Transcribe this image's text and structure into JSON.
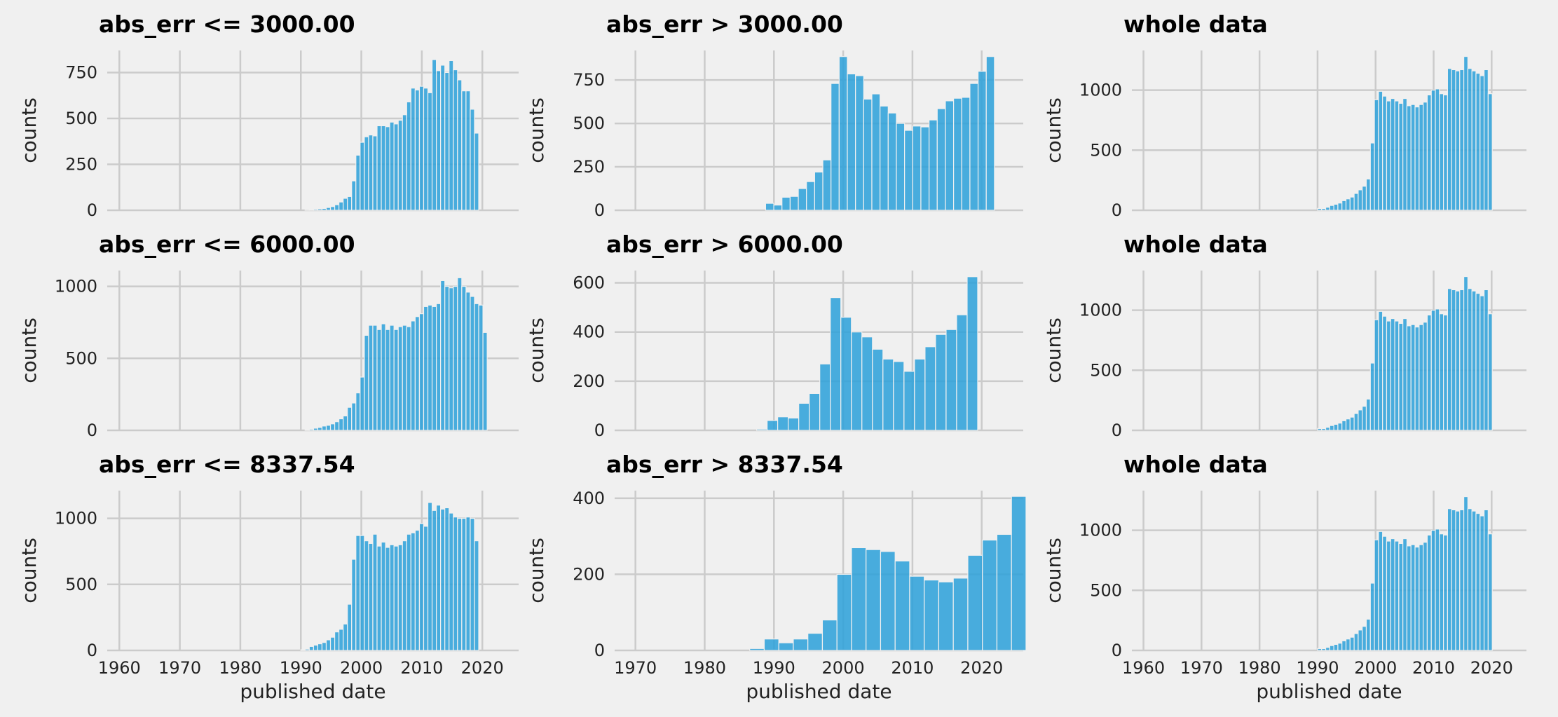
{
  "colors": {
    "background": "#f0f0f0",
    "bar": "#30a2da",
    "grid": "#cbcbcb"
  },
  "chart_data": [
    {
      "type": "bar",
      "title": "abs_err <= 3000.00",
      "xlabel": "",
      "ylabel": "counts",
      "bin_start": 1990,
      "bin_width": 0.7,
      "xlim": [
        1958,
        2026
      ],
      "ylim": [
        0,
        870
      ],
      "xticks": [],
      "yticks": [
        0,
        250,
        500,
        750
      ],
      "values": [
        0,
        2,
        4,
        6,
        8,
        10,
        15,
        20,
        30,
        45,
        65,
        75,
        160,
        300,
        370,
        400,
        410,
        405,
        460,
        460,
        455,
        480,
        470,
        490,
        520,
        590,
        665,
        655,
        675,
        665,
        640,
        820,
        760,
        790,
        750,
        815,
        765,
        710,
        650,
        650,
        550,
        420,
        0
      ]
    },
    {
      "type": "bar",
      "title": "abs_err > 3000.00",
      "xlabel": "",
      "ylabel": "counts",
      "bin_start": 1988.8,
      "bin_width": 1.18,
      "xlim": [
        1967,
        2026
      ],
      "ylim": [
        0,
        920
      ],
      "xticks": [],
      "yticks": [
        0,
        250,
        500,
        750
      ],
      "values": [
        40,
        30,
        75,
        80,
        125,
        165,
        220,
        290,
        730,
        885,
        785,
        775,
        640,
        670,
        600,
        560,
        500,
        460,
        485,
        480,
        520,
        585,
        630,
        645,
        650,
        730,
        800,
        885
      ]
    },
    {
      "type": "bar",
      "title": "whole data",
      "xlabel": "",
      "ylabel": "counts",
      "bin_start": 1990,
      "bin_width": 0.7,
      "xlim": [
        1958,
        2026
      ],
      "ylim": [
        0,
        1330
      ],
      "xticks": [],
      "yticks": [
        0,
        500,
        1000
      ],
      "values": [
        15,
        15,
        25,
        40,
        50,
        60,
        80,
        95,
        110,
        140,
        170,
        200,
        260,
        560,
        920,
        990,
        950,
        910,
        930,
        910,
        890,
        930,
        870,
        880,
        860,
        880,
        900,
        960,
        1000,
        1010,
        970,
        960,
        1180,
        1170,
        1160,
        1170,
        1280,
        1180,
        1160,
        1140,
        1120,
        1170,
        970
      ]
    },
    {
      "type": "bar",
      "title": "abs_err <= 6000.00",
      "xlabel": "",
      "ylabel": "counts",
      "bin_start": 1990,
      "bin_width": 0.7,
      "xlim": [
        1958,
        2026
      ],
      "ylim": [
        0,
        1110
      ],
      "xticks": [],
      "yticks": [
        0,
        500,
        1000
      ],
      "values": [
        0,
        5,
        8,
        15,
        20,
        30,
        35,
        45,
        60,
        80,
        100,
        160,
        190,
        260,
        370,
        660,
        730,
        730,
        700,
        740,
        700,
        730,
        700,
        720,
        730,
        720,
        760,
        790,
        810,
        860,
        870,
        860,
        880,
        1040,
        1000,
        990,
        1000,
        1060,
        1000,
        960,
        930,
        880,
        870,
        680
      ]
    },
    {
      "type": "bar",
      "title": "abs_err > 6000.00",
      "xlabel": "",
      "ylabel": "counts",
      "bin_start": 1987.5,
      "bin_width": 1.52,
      "xlim": [
        1967,
        2026
      ],
      "ylim": [
        0,
        650
      ],
      "xticks": [],
      "yticks": [
        0,
        200,
        400,
        600
      ],
      "values": [
        5,
        40,
        55,
        50,
        110,
        150,
        270,
        540,
        460,
        400,
        380,
        330,
        290,
        280,
        240,
        290,
        340,
        390,
        410,
        470,
        625
      ]
    },
    {
      "type": "bar",
      "title": "whole data",
      "xlabel": "",
      "ylabel": "counts",
      "bin_start": 1990,
      "bin_width": 0.7,
      "xlim": [
        1958,
        2026
      ],
      "ylim": [
        0,
        1330
      ],
      "xticks": [],
      "yticks": [
        0,
        500,
        1000
      ],
      "values": [
        15,
        15,
        25,
        40,
        50,
        60,
        80,
        95,
        110,
        140,
        170,
        200,
        260,
        560,
        920,
        990,
        950,
        910,
        930,
        910,
        890,
        930,
        870,
        880,
        860,
        880,
        900,
        960,
        1000,
        1010,
        970,
        960,
        1180,
        1170,
        1160,
        1170,
        1280,
        1180,
        1160,
        1140,
        1120,
        1170,
        970
      ]
    },
    {
      "type": "bar",
      "title": "abs_err <= 8337.54",
      "xlabel": "published date",
      "ylabel": "counts",
      "bin_start": 1990,
      "bin_width": 0.7,
      "xlim": [
        1958,
        2026
      ],
      "ylim": [
        0,
        1210
      ],
      "xticks": [
        1960,
        1970,
        1980,
        1990,
        2000,
        2010,
        2020
      ],
      "yticks": [
        0,
        500,
        1000
      ],
      "values": [
        5,
        10,
        30,
        40,
        50,
        60,
        80,
        100,
        140,
        160,
        200,
        350,
        690,
        870,
        870,
        830,
        810,
        880,
        790,
        820,
        780,
        800,
        790,
        800,
        830,
        880,
        890,
        910,
        960,
        940,
        1120,
        1060,
        1100,
        1070,
        1080,
        1040,
        1010,
        1000,
        1000,
        1010,
        1000,
        830
      ]
    },
    {
      "type": "bar",
      "title": "abs_err > 8337.54",
      "xlabel": "published date",
      "ylabel": "counts",
      "bin_start": 1986.5,
      "bin_width": 2.1,
      "xlim": [
        1967,
        2026
      ],
      "ylim": [
        0,
        420
      ],
      "xticks": [
        1970,
        1980,
        1990,
        2000,
        2010,
        2020
      ],
      "yticks": [
        0,
        200,
        400
      ],
      "values": [
        5,
        30,
        20,
        30,
        45,
        80,
        200,
        270,
        265,
        260,
        235,
        195,
        185,
        180,
        190,
        250,
        290,
        305,
        405
      ]
    },
    {
      "type": "bar",
      "title": "whole data",
      "xlabel": "published date",
      "ylabel": "counts",
      "bin_start": 1990,
      "bin_width": 0.7,
      "xlim": [
        1958,
        2026
      ],
      "ylim": [
        0,
        1330
      ],
      "xticks": [
        1960,
        1970,
        1980,
        1990,
        2000,
        2010,
        2020
      ],
      "yticks": [
        0,
        500,
        1000
      ],
      "values": [
        15,
        15,
        25,
        40,
        50,
        60,
        80,
        95,
        110,
        140,
        170,
        200,
        260,
        560,
        920,
        990,
        950,
        910,
        930,
        910,
        890,
        930,
        870,
        880,
        860,
        880,
        900,
        960,
        1000,
        1010,
        970,
        960,
        1180,
        1170,
        1160,
        1170,
        1280,
        1180,
        1160,
        1140,
        1120,
        1170,
        970
      ]
    }
  ]
}
